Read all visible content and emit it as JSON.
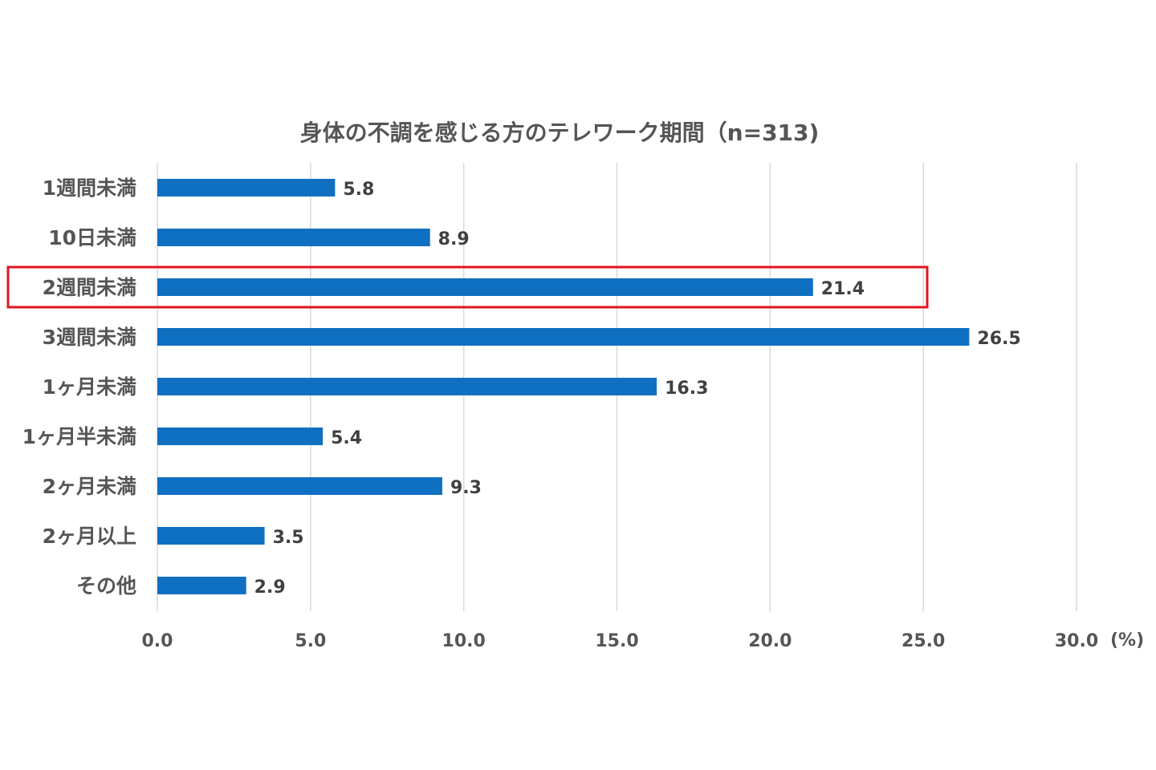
{
  "chart_data": {
    "type": "bar",
    "orientation": "horizontal",
    "title": "身体の不調を感じる方のテレワーク期間（n=313)",
    "categories": [
      "1週間未満",
      "10日未満",
      "2週間未満",
      "3週間未満",
      "1ヶ月未満",
      "1ヶ月半未満",
      "2ヶ月未満",
      "2ヶ月以上",
      "その他"
    ],
    "values": [
      5.8,
      8.9,
      21.4,
      26.5,
      16.3,
      5.4,
      9.3,
      3.5,
      2.9
    ],
    "value_labels": [
      "5.8",
      "8.9",
      "21.4",
      "26.5",
      "16.3",
      "5.4",
      "9.3",
      "3.5",
      "2.9"
    ],
    "xlim": [
      0,
      30
    ],
    "ticks": [
      0,
      5,
      10,
      15,
      20,
      25,
      30
    ],
    "tick_labels": [
      "0.0",
      "5.0",
      "10.0",
      "15.0",
      "20.0",
      "25.0",
      "30.0"
    ],
    "unit": "(%)",
    "grid": "vertical",
    "highlighted_category": "2週間未満",
    "colors": {
      "bar": "#0F70C1",
      "highlight_box": "#E0141E",
      "gridline": "#D9D9D9",
      "text": "#555555"
    }
  }
}
